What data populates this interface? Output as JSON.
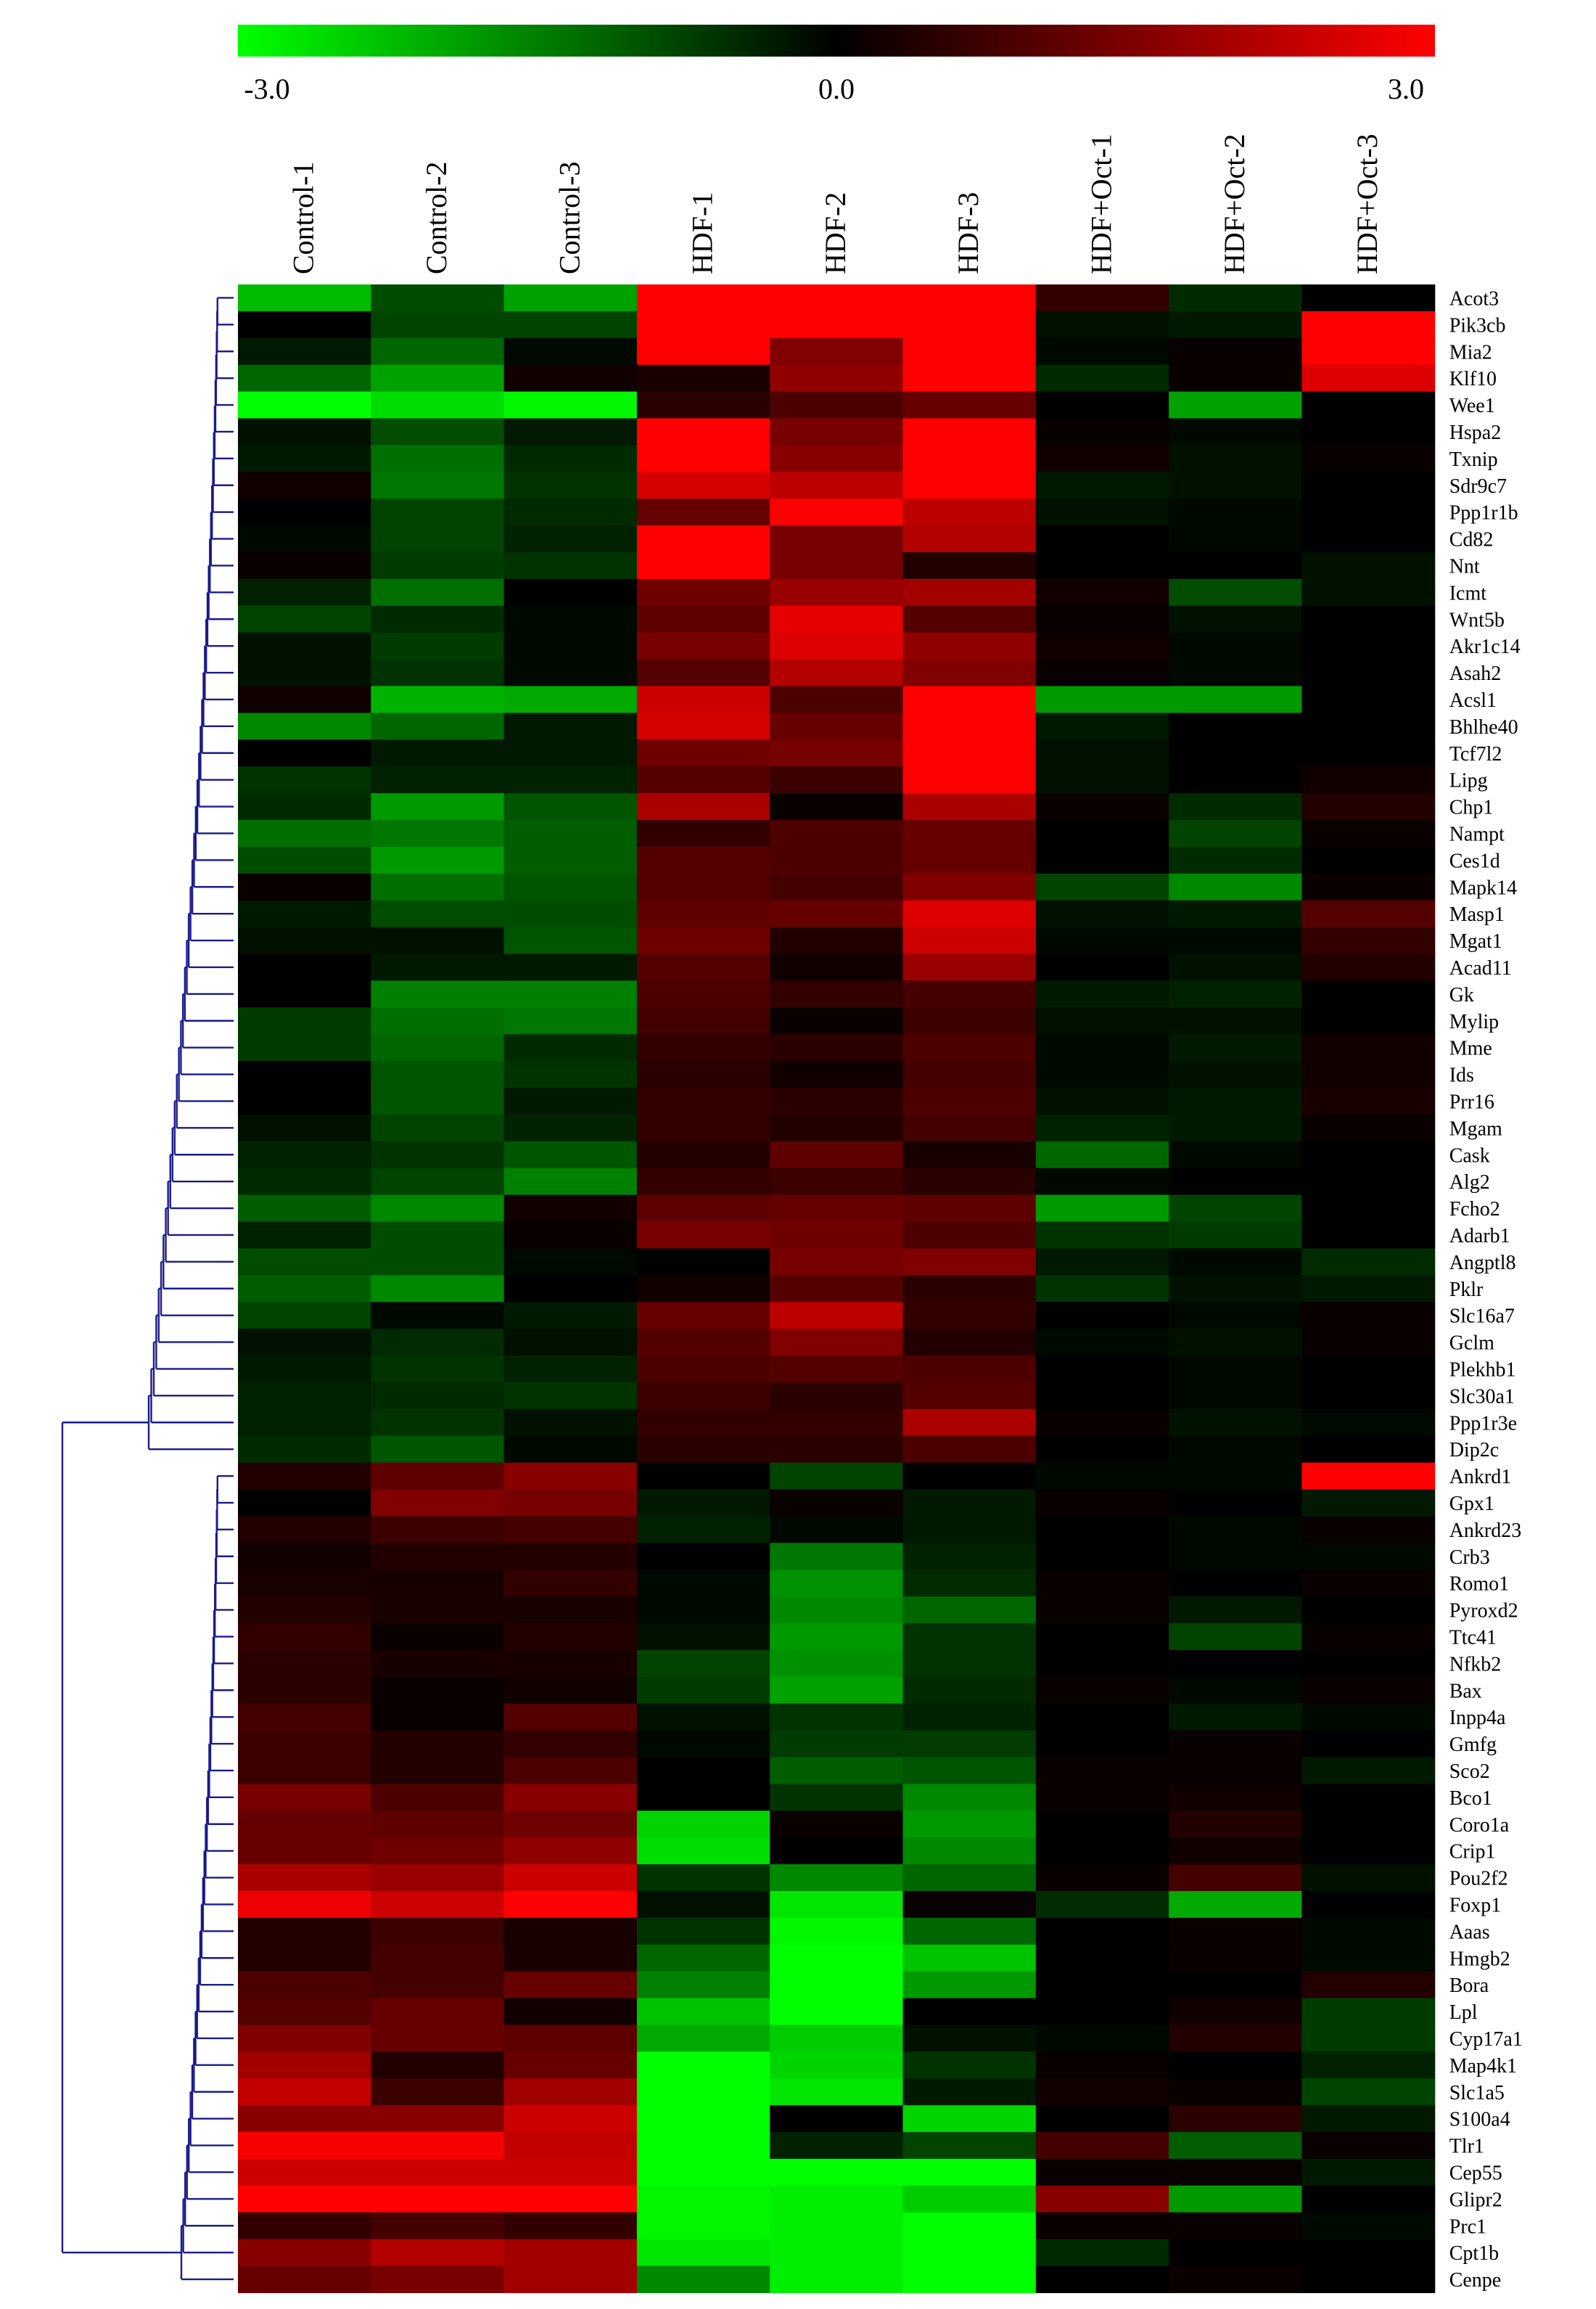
{
  "chart_data": {
    "type": "heatmap",
    "title": "",
    "xlabel": "",
    "ylabel": "",
    "color_scale": {
      "min": -3.0,
      "mid": 0.0,
      "max": 3.0,
      "tick_labels": [
        "-3.0",
        "0.0",
        "3.0"
      ],
      "low_color": "#00ff00",
      "mid_color": "#000000",
      "high_color": "#ff0000"
    },
    "columns": [
      "Control-1",
      "Control-2",
      "Control-3",
      "HDF-1",
      "HDF-2",
      "HDF-3",
      "HDF+Oct-1",
      "HDF+Oct-2",
      "HDF+Oct-3"
    ],
    "rows": [
      "Acot3",
      "Pik3cb",
      "Mia2",
      "Klf10",
      "Wee1",
      "Hspa2",
      "Txnip",
      "Sdr9c7",
      "Ppp1r1b",
      "Cd82",
      "Nnt",
      "Icmt",
      "Wnt5b",
      "Akr1c14",
      "Asah2",
      "Acsl1",
      "Bhlhe40",
      "Tcf7l2",
      "Lipg",
      "Chp1",
      "Nampt",
      "Ces1d",
      "Mapk14",
      "Masp1",
      "Mgat1",
      "Acad11",
      "Gk",
      "Mylip",
      "Mme",
      "Ids",
      "Prr16",
      "Mgam",
      "Cask",
      "Alg2",
      "Fcho2",
      "Adarb1",
      "Angptl8",
      "Pklr",
      "Slc16a7",
      "Gclm",
      "Plekhb1",
      "Slc30a1",
      "Ppp1r3e",
      "Dip2c",
      "Ankrd1",
      "Gpx1",
      "Ankrd23",
      "Crb3",
      "Romo1",
      "Pyroxd2",
      "Ttc41",
      "Nfkb2",
      "Bax",
      "Inpp4a",
      "Gmfg",
      "Sco2",
      "Bco1",
      "Coro1a",
      "Crip1",
      "Pou2f2",
      "Foxp1",
      "Aaas",
      "Hmgb2",
      "Bora",
      "Lpl",
      "Cyp17a1",
      "Map4k1",
      "Slc1a5",
      "S100a4",
      "Tlr1",
      "Cep55",
      "Glipr2",
      "Prc1",
      "Cpt1b",
      "Cenpe"
    ],
    "values": [
      [
        -2.2,
        -0.9,
        -1.9,
        3.0,
        3.0,
        3.0,
        0.6,
        -0.5,
        0.0
      ],
      [
        0.0,
        -0.8,
        -0.8,
        3.0,
        3.0,
        3.0,
        -0.2,
        -0.3,
        3.0
      ],
      [
        -0.3,
        -1.2,
        -0.1,
        3.0,
        1.5,
        3.0,
        -0.1,
        0.1,
        3.0
      ],
      [
        -1.2,
        -1.9,
        0.2,
        0.3,
        1.7,
        3.0,
        -0.5,
        0.1,
        2.6
      ],
      [
        -3.0,
        -2.6,
        -2.9,
        0.5,
        0.9,
        1.2,
        0.0,
        -1.9,
        0.0
      ],
      [
        -0.2,
        -0.9,
        -0.3,
        3.0,
        1.4,
        3.0,
        0.1,
        -0.1,
        0.0
      ],
      [
        -0.3,
        -1.3,
        -0.5,
        3.0,
        1.6,
        3.0,
        0.2,
        -0.2,
        0.1
      ],
      [
        0.2,
        -1.4,
        -0.6,
        2.5,
        2.2,
        3.0,
        -0.3,
        -0.2,
        0.0
      ],
      [
        0.0,
        -0.8,
        -0.5,
        1.2,
        3.0,
        2.2,
        -0.2,
        -0.1,
        0.0
      ],
      [
        -0.1,
        -0.8,
        -0.4,
        3.0,
        1.4,
        2.1,
        0.0,
        -0.1,
        0.0
      ],
      [
        0.1,
        -0.7,
        -0.6,
        3.0,
        1.4,
        0.4,
        0.0,
        0.0,
        -0.2
      ],
      [
        -0.4,
        -1.3,
        0.0,
        1.3,
        1.8,
        1.9,
        0.2,
        -0.9,
        -0.2
      ],
      [
        -0.8,
        -0.5,
        -0.1,
        1.1,
        2.7,
        1.0,
        0.1,
        -0.2,
        0.0
      ],
      [
        -0.2,
        -0.7,
        -0.1,
        1.4,
        2.6,
        1.7,
        0.2,
        -0.1,
        0.0
      ],
      [
        -0.2,
        -0.6,
        -0.1,
        1.0,
        2.1,
        1.5,
        0.1,
        -0.1,
        0.0
      ],
      [
        0.2,
        -2.1,
        -2.0,
        2.4,
        0.9,
        3.0,
        -1.8,
        -1.8,
        0.0
      ],
      [
        -1.6,
        -1.2,
        -0.3,
        2.5,
        1.2,
        3.0,
        -0.3,
        0.0,
        0.0
      ],
      [
        0.0,
        -0.3,
        -0.3,
        1.3,
        1.4,
        3.0,
        -0.2,
        0.0,
        0.0
      ],
      [
        -0.6,
        -0.4,
        -0.4,
        1.0,
        0.7,
        3.0,
        -0.2,
        0.0,
        0.2
      ],
      [
        -0.5,
        -1.8,
        -1.0,
        2.0,
        0.1,
        2.0,
        0.1,
        -0.5,
        0.4
      ],
      [
        -1.3,
        -1.4,
        -1.1,
        0.6,
        0.9,
        1.2,
        0.0,
        -0.8,
        0.1
      ],
      [
        -0.9,
        -1.8,
        -1.1,
        1.0,
        0.9,
        1.2,
        0.0,
        -0.5,
        0.0
      ],
      [
        0.1,
        -1.3,
        -1.0,
        1.0,
        0.8,
        1.5,
        -0.8,
        -1.6,
        0.1
      ],
      [
        -0.3,
        -0.9,
        -0.9,
        1.1,
        1.2,
        2.6,
        -0.2,
        -0.3,
        1.0
      ],
      [
        -0.2,
        -0.2,
        -1.0,
        1.3,
        0.4,
        2.4,
        -0.1,
        -0.1,
        0.6
      ],
      [
        0.0,
        -0.3,
        -0.3,
        1.0,
        0.2,
        1.8,
        0.0,
        -0.2,
        0.4
      ],
      [
        0.0,
        -1.5,
        -1.5,
        0.9,
        0.6,
        0.8,
        -0.3,
        -0.4,
        0.0
      ],
      [
        -0.7,
        -1.3,
        -1.4,
        0.8,
        0.1,
        0.7,
        -0.2,
        -0.2,
        0.0
      ],
      [
        -0.7,
        -1.2,
        -0.5,
        0.6,
        0.5,
        0.9,
        -0.1,
        -0.3,
        0.2
      ],
      [
        0.0,
        -1.0,
        -0.6,
        0.5,
        0.2,
        0.8,
        -0.1,
        -0.2,
        0.2
      ],
      [
        0.0,
        -1.0,
        -0.3,
        0.6,
        0.5,
        0.9,
        -0.2,
        -0.3,
        0.3
      ],
      [
        -0.2,
        -0.8,
        -0.4,
        0.6,
        0.4,
        0.8,
        -0.4,
        -0.3,
        0.1
      ],
      [
        -0.4,
        -0.6,
        -1.0,
        0.4,
        1.1,
        0.3,
        -1.2,
        -0.1,
        0.0
      ],
      [
        -0.5,
        -0.8,
        -1.5,
        0.6,
        0.7,
        0.5,
        -0.1,
        0.0,
        0.0
      ],
      [
        -1.1,
        -1.6,
        0.2,
        1.1,
        1.2,
        1.1,
        -1.8,
        -0.8,
        0.0
      ],
      [
        -0.4,
        -0.9,
        0.1,
        1.4,
        1.3,
        0.9,
        -0.6,
        -0.7,
        0.0
      ],
      [
        -0.9,
        -0.9,
        -0.1,
        0.0,
        1.4,
        1.5,
        -0.3,
        -0.1,
        -0.5
      ],
      [
        -1.1,
        -1.6,
        0.0,
        0.2,
        1.0,
        0.5,
        -0.6,
        -0.2,
        -0.3
      ],
      [
        -0.8,
        -0.1,
        -0.3,
        1.2,
        2.2,
        0.6,
        0.0,
        -0.1,
        0.1
      ],
      [
        -0.2,
        -0.5,
        -0.2,
        1.0,
        1.5,
        0.4,
        -0.1,
        -0.2,
        0.1
      ],
      [
        -0.3,
        -0.6,
        -0.4,
        0.9,
        1.0,
        0.9,
        0.0,
        -0.1,
        0.0
      ],
      [
        -0.4,
        -0.5,
        -0.6,
        0.7,
        0.5,
        1.0,
        0.0,
        -0.1,
        0.0
      ],
      [
        -0.4,
        -0.6,
        -0.2,
        0.6,
        0.6,
        2.0,
        0.1,
        -0.2,
        -0.1
      ],
      [
        -0.5,
        -1.0,
        -0.1,
        0.5,
        0.5,
        0.9,
        0.0,
        -0.1,
        0.0
      ],
      [
        0.4,
        1.1,
        1.6,
        0.0,
        -0.8,
        0.0,
        -0.1,
        -0.1,
        3.0
      ],
      [
        0.0,
        1.5,
        1.4,
        -0.3,
        0.1,
        -0.3,
        0.1,
        0.0,
        -0.3
      ],
      [
        0.4,
        0.7,
        0.8,
        -0.4,
        -0.1,
        -0.3,
        0.0,
        -0.1,
        0.1
      ],
      [
        0.2,
        0.4,
        0.4,
        0.0,
        -1.4,
        -0.4,
        0.0,
        -0.1,
        -0.1
      ],
      [
        0.3,
        0.3,
        0.6,
        -0.1,
        -1.7,
        -0.5,
        0.1,
        0.0,
        0.1
      ],
      [
        0.4,
        0.3,
        0.3,
        -0.1,
        -1.6,
        -1.2,
        0.1,
        -0.3,
        0.0
      ],
      [
        0.6,
        0.1,
        0.4,
        -0.2,
        -1.8,
        -0.6,
        0.0,
        -0.8,
        0.1
      ],
      [
        0.5,
        0.3,
        0.3,
        -0.8,
        -1.7,
        -0.6,
        0.0,
        0.0,
        0.0
      ],
      [
        0.5,
        0.1,
        0.2,
        -0.7,
        -1.9,
        -0.5,
        0.1,
        -0.1,
        0.1
      ],
      [
        0.8,
        0.1,
        1.0,
        -0.2,
        -0.6,
        -0.4,
        0.0,
        -0.3,
        -0.1
      ],
      [
        0.7,
        0.4,
        0.6,
        -0.1,
        -0.7,
        -0.7,
        0.0,
        0.1,
        0.0
      ],
      [
        0.7,
        0.4,
        0.9,
        0.0,
        -1.1,
        -1.0,
        0.1,
        0.1,
        -0.3
      ],
      [
        1.4,
        0.9,
        1.6,
        0.0,
        -0.6,
        -1.6,
        0.1,
        0.2,
        0.0
      ],
      [
        1.2,
        1.1,
        1.3,
        -2.5,
        0.1,
        -1.8,
        0.0,
        0.4,
        0.0
      ],
      [
        1.2,
        1.3,
        1.7,
        -2.6,
        0.0,
        -1.6,
        0.0,
        0.2,
        0.0
      ],
      [
        2.0,
        1.8,
        2.4,
        -0.6,
        -1.6,
        -1.2,
        0.1,
        0.8,
        -0.2
      ],
      [
        2.8,
        2.4,
        3.0,
        -0.2,
        -2.7,
        0.1,
        -0.5,
        -2.0,
        0.0
      ],
      [
        0.4,
        0.7,
        0.3,
        -0.6,
        -2.9,
        -1.2,
        0.0,
        0.1,
        -0.1
      ],
      [
        0.4,
        0.8,
        0.3,
        -1.2,
        -3.0,
        -2.3,
        0.0,
        0.1,
        -0.1
      ],
      [
        0.9,
        0.8,
        1.2,
        -1.5,
        -3.0,
        -1.8,
        0.0,
        0.0,
        0.4
      ],
      [
        1.0,
        1.2,
        0.2,
        -2.3,
        -3.0,
        0.0,
        0.0,
        0.2,
        -0.7
      ],
      [
        1.5,
        1.2,
        1.1,
        -2.0,
        -2.4,
        -0.2,
        -0.1,
        0.4,
        -0.7
      ],
      [
        1.9,
        0.4,
        1.2,
        -3.0,
        -2.5,
        -0.6,
        0.1,
        0.0,
        -0.4
      ],
      [
        2.3,
        0.7,
        1.9,
        -3.0,
        -2.7,
        -0.3,
        0.2,
        0.1,
        -0.8
      ],
      [
        1.6,
        1.6,
        2.4,
        -3.0,
        0.0,
        -2.5,
        0.0,
        0.5,
        -0.3
      ],
      [
        2.9,
        2.9,
        2.3,
        -3.0,
        -0.4,
        -0.8,
        0.8,
        -1.1,
        0.1
      ],
      [
        2.4,
        2.4,
        2.4,
        -3.0,
        -3.0,
        -3.0,
        0.1,
        0.1,
        -0.3
      ],
      [
        3.0,
        3.0,
        3.0,
        -2.9,
        -2.8,
        -2.4,
        1.6,
        -1.8,
        0.0
      ],
      [
        0.6,
        0.8,
        0.6,
        -2.9,
        -2.8,
        -3.0,
        0.1,
        0.1,
        -0.1
      ],
      [
        1.6,
        2.1,
        1.9,
        -2.7,
        -2.8,
        -3.0,
        -0.5,
        0.0,
        0.0
      ],
      [
        1.2,
        1.4,
        1.9,
        -1.6,
        -2.8,
        -3.0,
        0.0,
        0.1,
        0.0
      ]
    ],
    "cluster_split_after_row": "Dip2c",
    "grid": false,
    "legend": "top"
  }
}
